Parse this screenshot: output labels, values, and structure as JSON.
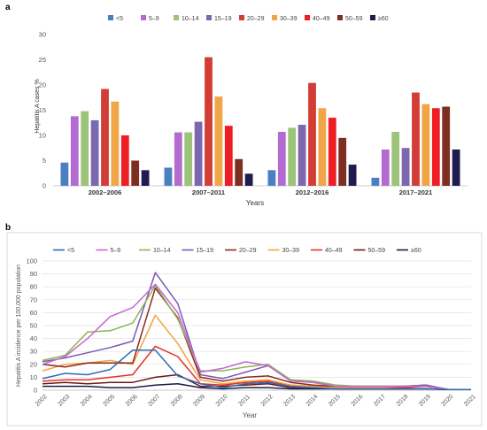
{
  "panel_labels": [
    "a",
    "b"
  ],
  "chart_data": [
    {
      "type": "bar",
      "title": "",
      "xlabel": "Years",
      "ylabel": "Hepatitis A cases %",
      "ylim": [
        0,
        30
      ],
      "yticks": [
        0,
        5,
        10,
        15,
        20,
        25,
        30
      ],
      "grid": false,
      "legend_position": "top",
      "categories": [
        "2002–2006",
        "2007–2011",
        "2012–2016",
        "2017–2021"
      ],
      "series": [
        {
          "name": "<5",
          "color": "#4a7fc1",
          "values": [
            4.6,
            3.6,
            3.1,
            1.6
          ]
        },
        {
          "name": "5–9",
          "color": "#b46bd1",
          "values": [
            13.8,
            10.6,
            10.7,
            7.2
          ]
        },
        {
          "name": "10–14",
          "color": "#9bc47a",
          "values": [
            14.8,
            10.6,
            11.5,
            10.7
          ]
        },
        {
          "name": "15–19",
          "color": "#7d68b0",
          "values": [
            13.0,
            12.7,
            12.1,
            7.5
          ]
        },
        {
          "name": "20–29",
          "color": "#d23e36",
          "values": [
            19.2,
            25.5,
            20.4,
            18.5
          ]
        },
        {
          "name": "30–39",
          "color": "#f0a646",
          "values": [
            16.7,
            17.7,
            15.4,
            16.2
          ]
        },
        {
          "name": "40–49",
          "color": "#ee1f24",
          "values": [
            10.0,
            11.9,
            13.5,
            15.4
          ]
        },
        {
          "name": "50–59",
          "color": "#7f2e22",
          "values": [
            5.0,
            5.3,
            9.5,
            15.7
          ]
        },
        {
          "name": "≥60",
          "color": "#1f1d4f",
          "values": [
            3.1,
            2.4,
            4.2,
            7.2
          ]
        }
      ]
    },
    {
      "type": "line",
      "title": "",
      "xlabel": "Year",
      "ylabel": "Hepatitis A incidence per 100,000 population",
      "ylim": [
        0,
        100
      ],
      "yticks": [
        0,
        10,
        20,
        30,
        40,
        50,
        60,
        70,
        80,
        90,
        100
      ],
      "grid": true,
      "legend_position": "top",
      "x": [
        "2002",
        "2003",
        "2004",
        "2005",
        "2006",
        "2007",
        "2008",
        "2009",
        "2010",
        "2011",
        "2012",
        "2013",
        "2014",
        "2015",
        "2016",
        "2017",
        "2018",
        "2019",
        "2020",
        "2021"
      ],
      "series": [
        {
          "name": "<5",
          "color": "#2e6cb5",
          "values": [
            9,
            13,
            12,
            16,
            31,
            31,
            11,
            5,
            2,
            5,
            6,
            3,
            2,
            1,
            1,
            1,
            1,
            1,
            0.5,
            0.5
          ]
        },
        {
          "name": "5–9",
          "color": "#c765d6",
          "values": [
            20,
            26,
            40,
            57,
            64,
            82,
            60,
            14,
            17,
            22,
            19,
            7,
            6,
            3,
            3,
            3,
            3,
            3,
            0.5,
            0.5
          ]
        },
        {
          "name": "10–14",
          "color": "#8ab650",
          "values": [
            23,
            27,
            45,
            46,
            52,
            81,
            55,
            15,
            15,
            18,
            20,
            8,
            7,
            4,
            3,
            3,
            3,
            3,
            0.5,
            0.5
          ]
        },
        {
          "name": "15–19",
          "color": "#7a58b8",
          "values": [
            22,
            25,
            29,
            33,
            38,
            91,
            67,
            12,
            9,
            14,
            19,
            8,
            6,
            3,
            3,
            3,
            3,
            4,
            0.5,
            0.5
          ]
        },
        {
          "name": "20–29",
          "color": "#8b2b1e",
          "values": [
            20,
            18,
            21,
            21,
            21,
            79,
            56,
            10,
            7,
            10,
            11,
            6,
            4,
            3,
            3,
            3,
            3,
            4,
            0.5,
            0.5
          ]
        },
        {
          "name": "30–39",
          "color": "#f0a43c",
          "values": [
            15,
            20,
            21,
            23,
            20,
            58,
            36,
            8,
            5,
            7,
            8,
            4,
            3,
            2,
            2,
            2,
            3,
            4,
            0.5,
            0.5
          ]
        },
        {
          "name": "40–49",
          "color": "#e23226",
          "values": [
            7,
            8,
            8,
            10,
            12,
            34,
            26,
            5,
            4,
            6,
            7,
            4,
            3,
            2,
            2,
            2,
            2,
            3,
            0.5,
            0.5
          ]
        },
        {
          "name": "50–59",
          "color": "#6b1a16",
          "values": [
            5,
            6,
            5,
            6,
            6,
            10,
            12,
            3,
            3,
            4,
            5,
            2,
            2,
            1,
            1,
            1,
            1,
            1,
            0.5,
            0.5
          ]
        },
        {
          "name": "≥60",
          "color": "#141b4d",
          "values": [
            3,
            3,
            3,
            2,
            2,
            4,
            5,
            2,
            1,
            2,
            2,
            1,
            1,
            1,
            1,
            1,
            1,
            1,
            0.5,
            0.5
          ]
        }
      ]
    }
  ]
}
